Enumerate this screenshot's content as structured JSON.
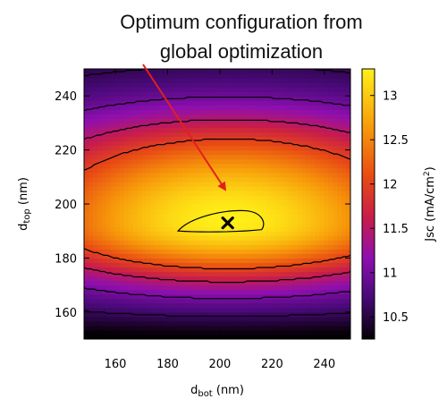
{
  "chart_data": {
    "type": "heatmap",
    "annotation": {
      "line1": "Optimum configuration from",
      "line2": "global optimization",
      "arrow_color": "#e0201c"
    },
    "xaxis": {
      "label_main": "d",
      "label_sub": "bot",
      "label_unit": " (nm)",
      "range": [
        148,
        250
      ],
      "ticks": [
        160,
        180,
        200,
        220,
        240
      ]
    },
    "yaxis": {
      "label_main": "d",
      "label_sub": "top",
      "label_unit": " (nm)",
      "range": [
        150,
        250
      ],
      "ticks": [
        160,
        180,
        200,
        220,
        240
      ]
    },
    "colorbar": {
      "label_main": "Jsc (mA/cm",
      "label_sup": "2",
      "label_end": ")",
      "range": [
        10.25,
        13.3
      ],
      "ticks": [
        10.5,
        11,
        11.5,
        12,
        12.5,
        13
      ]
    },
    "optimum": {
      "x": 203,
      "y": 193,
      "marker": "cross"
    },
    "contour_line_color": "#000000",
    "colormap": "gnuplot-hot (black-purple-red-orange-yellow)"
  }
}
